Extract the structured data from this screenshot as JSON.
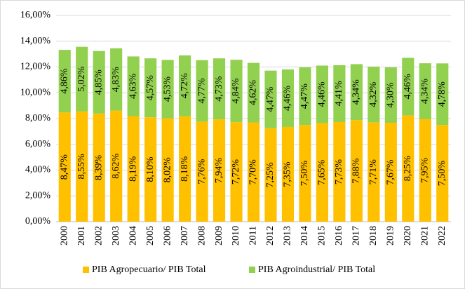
{
  "chart_data": {
    "type": "stacked_bar",
    "categories": [
      "2000",
      "2001",
      "2002",
      "2003",
      "2004",
      "2005",
      "2006",
      "2007",
      "2008",
      "2009",
      "2010",
      "2011",
      "2012",
      "2013",
      "2014",
      "2015",
      "2016",
      "2017",
      "2018",
      "2019",
      "2020",
      "2021",
      "2022"
    ],
    "series": [
      {
        "name": "PIB Agropecuario/ PIB Total",
        "color": "#FFC000",
        "values": [
          8.47,
          8.55,
          8.39,
          8.62,
          8.19,
          8.1,
          8.02,
          8.18,
          7.76,
          7.94,
          7.72,
          7.7,
          7.25,
          7.35,
          7.5,
          7.65,
          7.73,
          7.88,
          7.71,
          7.67,
          8.25,
          7.95,
          7.5
        ],
        "value_labels": [
          "8,47%",
          "8,55%",
          "8,39%",
          "8,62%",
          "8,19%",
          "8,10%",
          "8,02%",
          "8,18%",
          "7,76%",
          "7,94%",
          "7,72%",
          "7,70%",
          "7,25%",
          "7,35%",
          "7,50%",
          "7,65%",
          "7,73%",
          "7,88%",
          "7,71%",
          "7,67%",
          "8,25%",
          "7,95%",
          "7,50%"
        ]
      },
      {
        "name": "PIB Agroindustrial/ PIB Total",
        "color": "#92D050",
        "values": [
          4.86,
          5.02,
          4.85,
          4.83,
          4.63,
          4.57,
          4.53,
          4.72,
          4.77,
          4.73,
          4.84,
          4.62,
          4.47,
          4.46,
          4.47,
          4.46,
          4.41,
          4.34,
          4.32,
          4.3,
          4.46,
          4.34,
          4.78
        ],
        "value_labels": [
          "4,86%",
          "5,02%",
          "4,85%",
          "4,83%",
          "4,63%",
          "4,57%",
          "4,53%",
          "4,72%",
          "4,77%",
          "4,73%",
          "4,84%",
          "4,62%",
          "4,47%",
          "4,46%",
          "4,47%",
          "4,46%",
          "4,41%",
          "4,34%",
          "4,32%",
          "4,30%",
          "4,46%",
          "4,34%",
          "4,78%"
        ]
      }
    ],
    "ylim": [
      0,
      16
    ],
    "yticks": [
      {
        "value": 0,
        "label": "0,00%"
      },
      {
        "value": 2,
        "label": "2,00%"
      },
      {
        "value": 4,
        "label": "4,00%"
      },
      {
        "value": 6,
        "label": "6,00%"
      },
      {
        "value": 8,
        "label": "8,00%"
      },
      {
        "value": 10,
        "label": "10,00%"
      },
      {
        "value": 12,
        "label": "12,00%"
      },
      {
        "value": 14,
        "label": "14,00%"
      },
      {
        "value": 16,
        "label": "16,00%"
      }
    ],
    "grid": true
  }
}
